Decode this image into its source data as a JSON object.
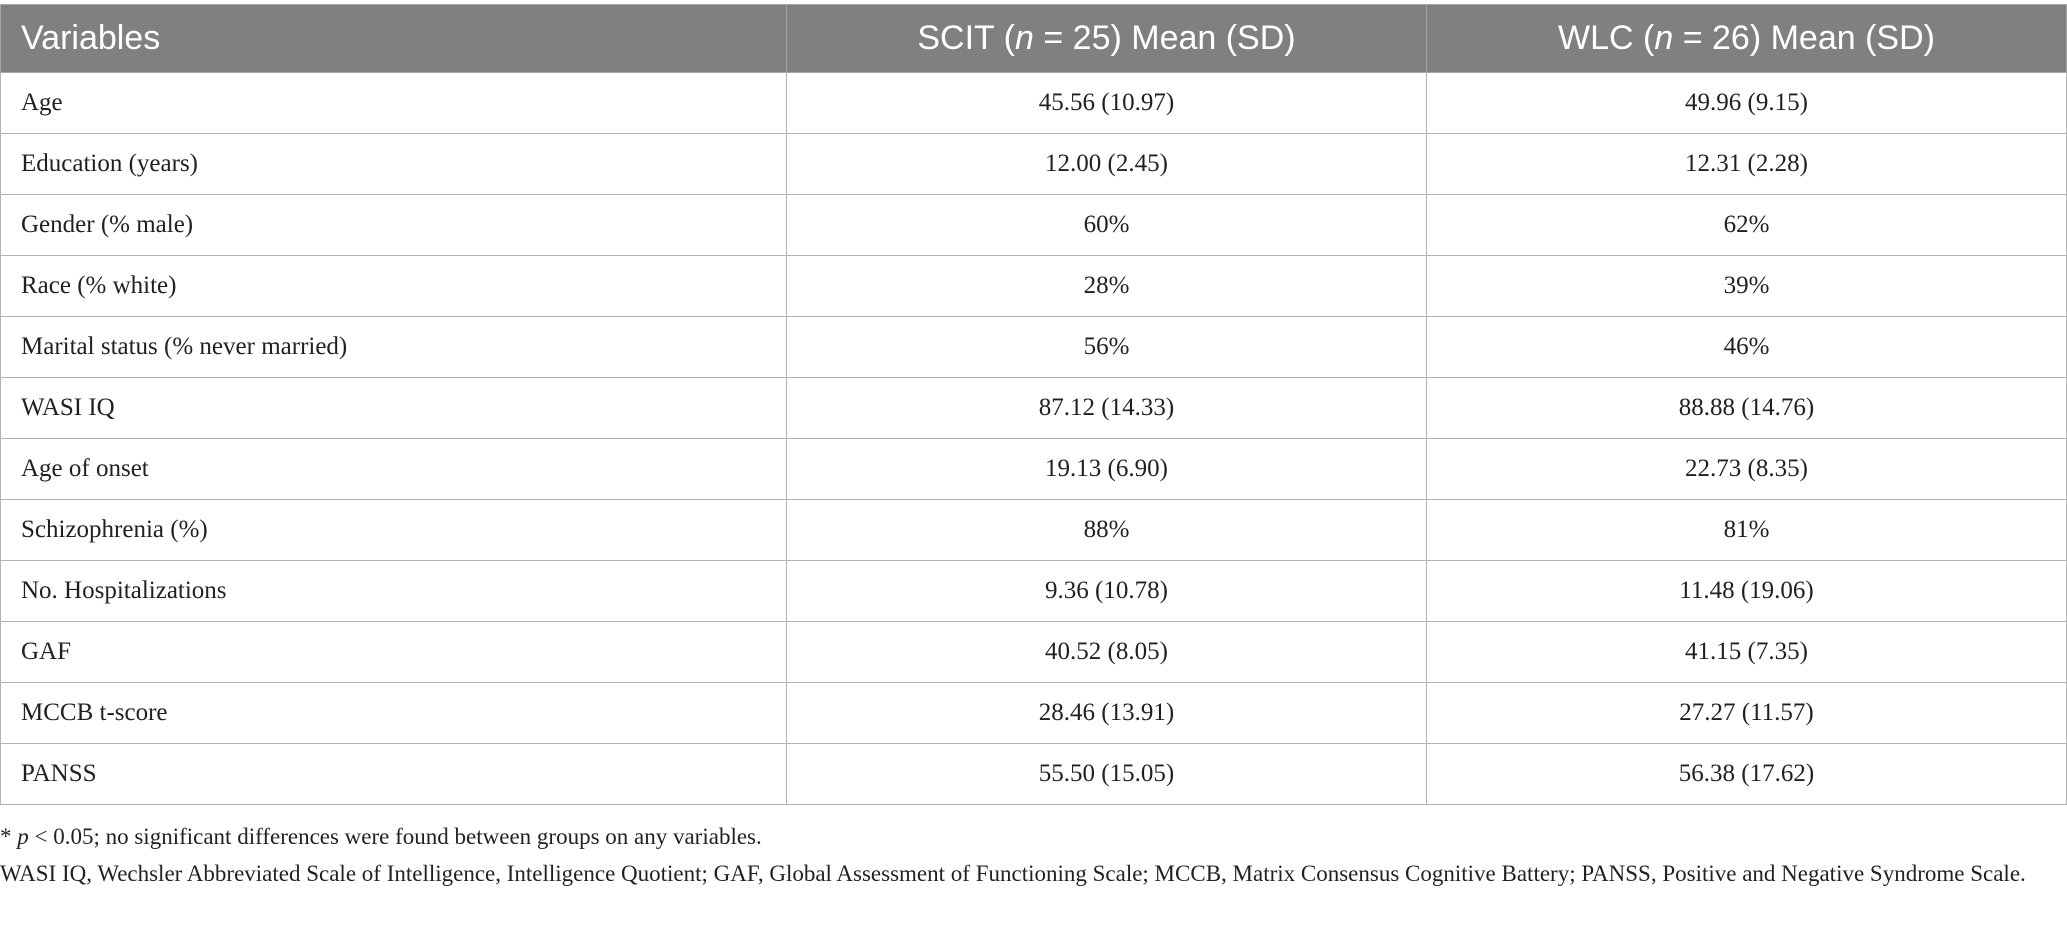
{
  "table": {
    "headers": {
      "variables": "Variables",
      "scit_prefix": "SCIT (",
      "scit_n": "n",
      "scit_suffix": " = 25) Mean (SD)",
      "wlc_prefix": "WLC (",
      "wlc_n": "n",
      "wlc_suffix": " = 26) Mean (SD)"
    },
    "rows": [
      {
        "variable": "Age",
        "scit": "45.56 (10.97)",
        "wlc": "49.96 (9.15)"
      },
      {
        "variable": "Education (years)",
        "scit": "12.00 (2.45)",
        "wlc": "12.31 (2.28)"
      },
      {
        "variable": "Gender (% male)",
        "scit": "60%",
        "wlc": "62%"
      },
      {
        "variable": "Race (% white)",
        "scit": "28%",
        "wlc": "39%"
      },
      {
        "variable": "Marital status (% never married)",
        "scit": "56%",
        "wlc": "46%"
      },
      {
        "variable": "WASI IQ",
        "scit": "87.12 (14.33)",
        "wlc": "88.88 (14.76)"
      },
      {
        "variable": "Age of onset",
        "scit": "19.13 (6.90)",
        "wlc": "22.73 (8.35)"
      },
      {
        "variable": "Schizophrenia (%)",
        "scit": "88%",
        "wlc": "81%"
      },
      {
        "variable": "No. Hospitalizations",
        "scit": "9.36 (10.78)",
        "wlc": "11.48 (19.06)"
      },
      {
        "variable": "GAF",
        "scit": "40.52 (8.05)",
        "wlc": "41.15 (7.35)"
      },
      {
        "variable": "MCCB t-score",
        "scit": "28.46 (13.91)",
        "wlc": "27.27 (11.57)"
      },
      {
        "variable": "PANSS",
        "scit": "55.50 (15.05)",
        "wlc": "56.38 (17.62)"
      }
    ]
  },
  "footnotes": {
    "sig_star": "* ",
    "sig_p": "p",
    "sig_rest": " < 0.05; no significant differences were found between groups on any variables.",
    "abbreviations": "WASI IQ, Wechsler Abbreviated Scale of Intelligence, Intelligence Quotient; GAF, Global Assessment of Functioning Scale; MCCB, Matrix Consensus Cognitive Battery; PANSS, Positive and Negative Syndrome Scale."
  }
}
